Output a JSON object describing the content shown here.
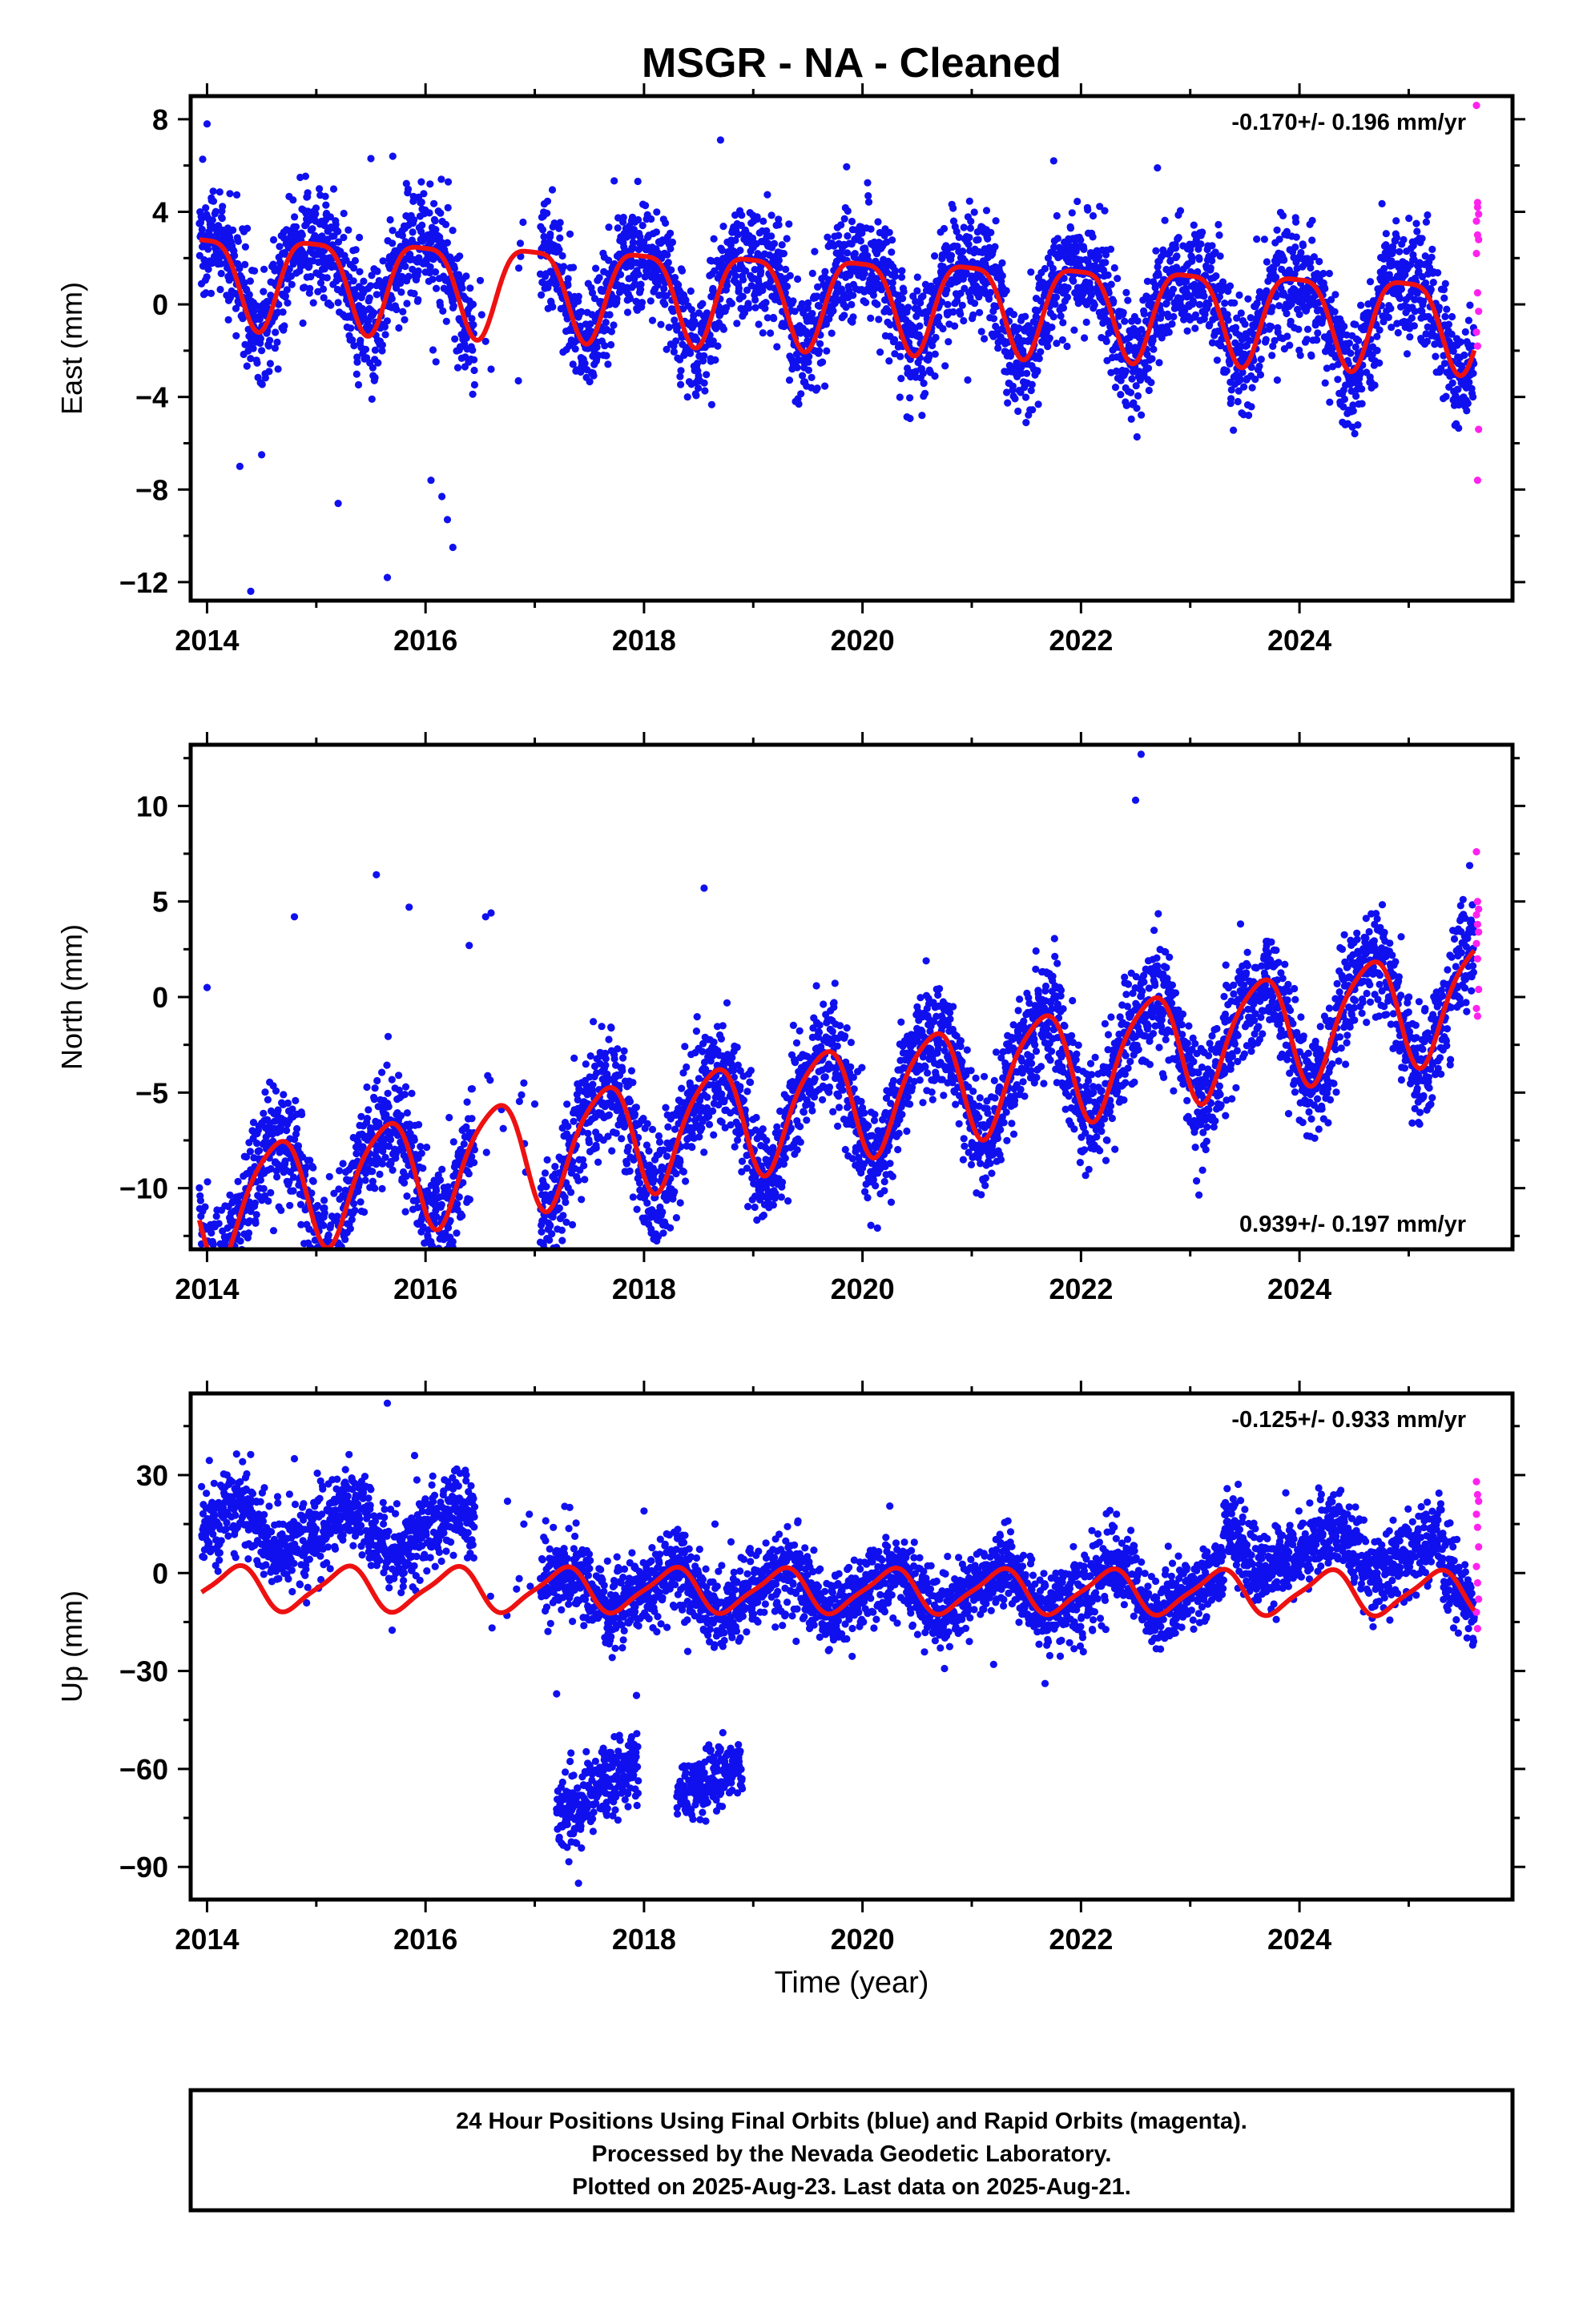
{
  "title": "MSGR  - NA - Cleaned",
  "x_axis_label": "Time (year)",
  "colors": {
    "final": "#1010ee",
    "rapid": "#ff22ee",
    "fit": "#ee1111",
    "frame": "#000000"
  },
  "footer": {
    "line1": "24 Hour Positions Using Final Orbits (blue) and Rapid Orbits (magenta).",
    "line2": "Processed by the Nevada Geodetic Laboratory.",
    "line3": "Plotted on 2025-Aug-23. Last data on 2025-Aug-21."
  },
  "chart_data": [
    {
      "type": "scatter",
      "panel": "east",
      "ylabel": "East (mm)",
      "rate_label": "-0.170+/- 0.196 mm/yr",
      "rate_position": "top-right",
      "xlim": [
        2013.85,
        2025.95
      ],
      "ylim": [
        -12.8,
        9.0
      ],
      "xticks": [
        2014,
        2016,
        2018,
        2020,
        2022,
        2024
      ],
      "yticks": [
        8,
        4,
        0,
        -4,
        -8,
        -12
      ],
      "yticks_labels": [
        "8",
        "4",
        "0",
        "−4",
        "−8",
        "−12"
      ],
      "data_start": 2013.93,
      "data_end": 2025.6,
      "gaps": [
        [
          2016.45,
          2017.05
        ]
      ],
      "fit": {
        "offset": 0.3,
        "trend": -0.17,
        "annual_amp": 1.95,
        "annual_phase": 0.72,
        "semiannual_amp": 0.5,
        "semiannual_phase": 0.1
      },
      "scatter_sd": 1.25,
      "outliers": [
        [
          2014.0,
          7.8
        ],
        [
          2014.4,
          -12.4
        ],
        [
          2015.2,
          -8.6
        ],
        [
          2015.65,
          -11.8
        ],
        [
          2016.05,
          -7.6
        ],
        [
          2016.25,
          -10.5
        ],
        [
          2016.2,
          -9.3
        ],
        [
          2016.15,
          -8.3
        ],
        [
          2015.5,
          6.3
        ],
        [
          2015.7,
          6.4
        ],
        [
          2018.7,
          7.1
        ],
        [
          2014.3,
          -7.0
        ],
        [
          2014.5,
          -6.5
        ],
        [
          2021.75,
          6.2
        ],
        [
          2022.7,
          5.9
        ],
        [
          2016.85,
          -3.3
        ],
        [
          2016.6,
          -2.8
        ],
        [
          2016.55,
          -1.6
        ]
      ],
      "rapid_points": [
        [
          2025.62,
          8.6
        ],
        [
          2025.63,
          4.4
        ],
        [
          2025.63,
          4.2
        ],
        [
          2025.64,
          3.9
        ],
        [
          2025.62,
          3.6
        ],
        [
          2025.63,
          3.0
        ],
        [
          2025.64,
          2.8
        ],
        [
          2025.62,
          2.2
        ],
        [
          2025.63,
          0.5
        ],
        [
          2025.64,
          -0.3
        ],
        [
          2025.62,
          -1.2
        ],
        [
          2025.63,
          -1.8
        ],
        [
          2025.64,
          -5.4
        ],
        [
          2025.63,
          -7.6
        ]
      ]
    },
    {
      "type": "scatter",
      "panel": "north",
      "ylabel": "North (mm)",
      "rate_label": "0.939+/- 0.197 mm/yr",
      "rate_position": "bottom-right",
      "xlim": [
        2013.85,
        2025.95
      ],
      "ylim": [
        -13.2,
        13.2
      ],
      "xticks": [
        2014,
        2016,
        2018,
        2020,
        2022,
        2024
      ],
      "yticks": [
        10,
        5,
        0,
        -5,
        -10
      ],
      "yticks_labels": [
        "10",
        "5",
        "0",
        "−5",
        "−10"
      ],
      "data_start": 2013.93,
      "data_end": 2025.6,
      "gaps": [
        [
          2016.45,
          2017.05
        ]
      ],
      "fit": {
        "offset": -5.2,
        "trend": 0.939,
        "annual_amp": 2.9,
        "annual_phase": 0.38,
        "semiannual_amp": 0.5,
        "semiannual_phase": 0.2
      },
      "scatter_sd": 1.5,
      "outliers": [
        [
          2014.0,
          0.5
        ],
        [
          2014.8,
          4.2
        ],
        [
          2015.55,
          6.4
        ],
        [
          2015.85,
          4.7
        ],
        [
          2016.25,
          -12.8
        ],
        [
          2016.4,
          2.7
        ],
        [
          2016.55,
          4.2
        ],
        [
          2016.6,
          4.4
        ],
        [
          2018.55,
          5.7
        ],
        [
          2022.55,
          12.7
        ],
        [
          2022.5,
          10.3
        ],
        [
          2014.25,
          -11.2
        ],
        [
          2016.1,
          -11.5
        ],
        [
          2016.9,
          -4.5
        ],
        [
          2017.0,
          -5.6
        ],
        [
          2023.9,
          -6.1
        ],
        [
          2020.0,
          -5.8
        ]
      ],
      "rapid_points": [
        [
          2025.62,
          7.6
        ],
        [
          2025.63,
          5.0
        ],
        [
          2025.64,
          4.6
        ],
        [
          2025.62,
          4.3
        ],
        [
          2025.63,
          3.8
        ],
        [
          2025.64,
          3.4
        ],
        [
          2025.62,
          2.8
        ],
        [
          2025.63,
          2.0
        ],
        [
          2025.64,
          0.4
        ],
        [
          2025.62,
          -0.6
        ],
        [
          2025.63,
          -1.0
        ]
      ]
    },
    {
      "type": "scatter",
      "panel": "up",
      "ylabel": "Up (mm)",
      "rate_label": "-0.125+/- 0.933 mm/yr",
      "rate_position": "top-right",
      "xlim": [
        2013.85,
        2025.95
      ],
      "ylim": [
        -100,
        55
      ],
      "xticks": [
        2014,
        2016,
        2018,
        2020,
        2022,
        2024
      ],
      "yticks": [
        30,
        0,
        -30,
        -60,
        -90
      ],
      "yticks_labels": [
        "30",
        "0",
        "−30",
        "−60",
        "−90"
      ],
      "data_start": 2013.95,
      "data_end": 2025.6,
      "gaps": [
        [
          2016.45,
          2017.05
        ]
      ],
      "fit": {
        "offset": -5.5,
        "trend": -0.125,
        "annual_amp": 6.5,
        "annual_phase": 0.0,
        "semiannual_amp": 1.5,
        "semiannual_phase": 0.25
      },
      "scatter_sd": 6.0,
      "level_shifts": [
        {
          "from": 2013.95,
          "to": 2016.45,
          "offset": 18
        },
        {
          "from": 2023.3,
          "to": 2025.3,
          "offset": 13
        }
      ],
      "clusters": [
        {
          "from": 2017.2,
          "to": 2017.95,
          "start": -75,
          "end": -58,
          "sd": 6
        },
        {
          "from": 2018.3,
          "to": 2018.9,
          "start": -68,
          "end": -58,
          "sd": 5
        }
      ],
      "outliers": [
        [
          2015.65,
          52
        ],
        [
          2014.8,
          35
        ],
        [
          2015.9,
          36
        ],
        [
          2016.75,
          22
        ],
        [
          2016.95,
          18
        ],
        [
          2017.2,
          -37
        ],
        [
          2017.4,
          -95
        ],
        [
          2018.4,
          -24
        ],
        [
          2018.65,
          15
        ],
        [
          2021.2,
          -28
        ],
        [
          2017.1,
          16
        ],
        [
          2018.0,
          19
        ],
        [
          2022.1,
          13
        ],
        [
          2016.9,
          15
        ]
      ],
      "rapid_points": [
        [
          2025.62,
          28
        ],
        [
          2025.63,
          24
        ],
        [
          2025.64,
          22
        ],
        [
          2025.62,
          18
        ],
        [
          2025.63,
          14
        ],
        [
          2025.64,
          8
        ],
        [
          2025.62,
          2
        ],
        [
          2025.63,
          -3
        ],
        [
          2025.64,
          -8
        ],
        [
          2025.62,
          -12
        ],
        [
          2025.63,
          -17
        ]
      ]
    }
  ]
}
